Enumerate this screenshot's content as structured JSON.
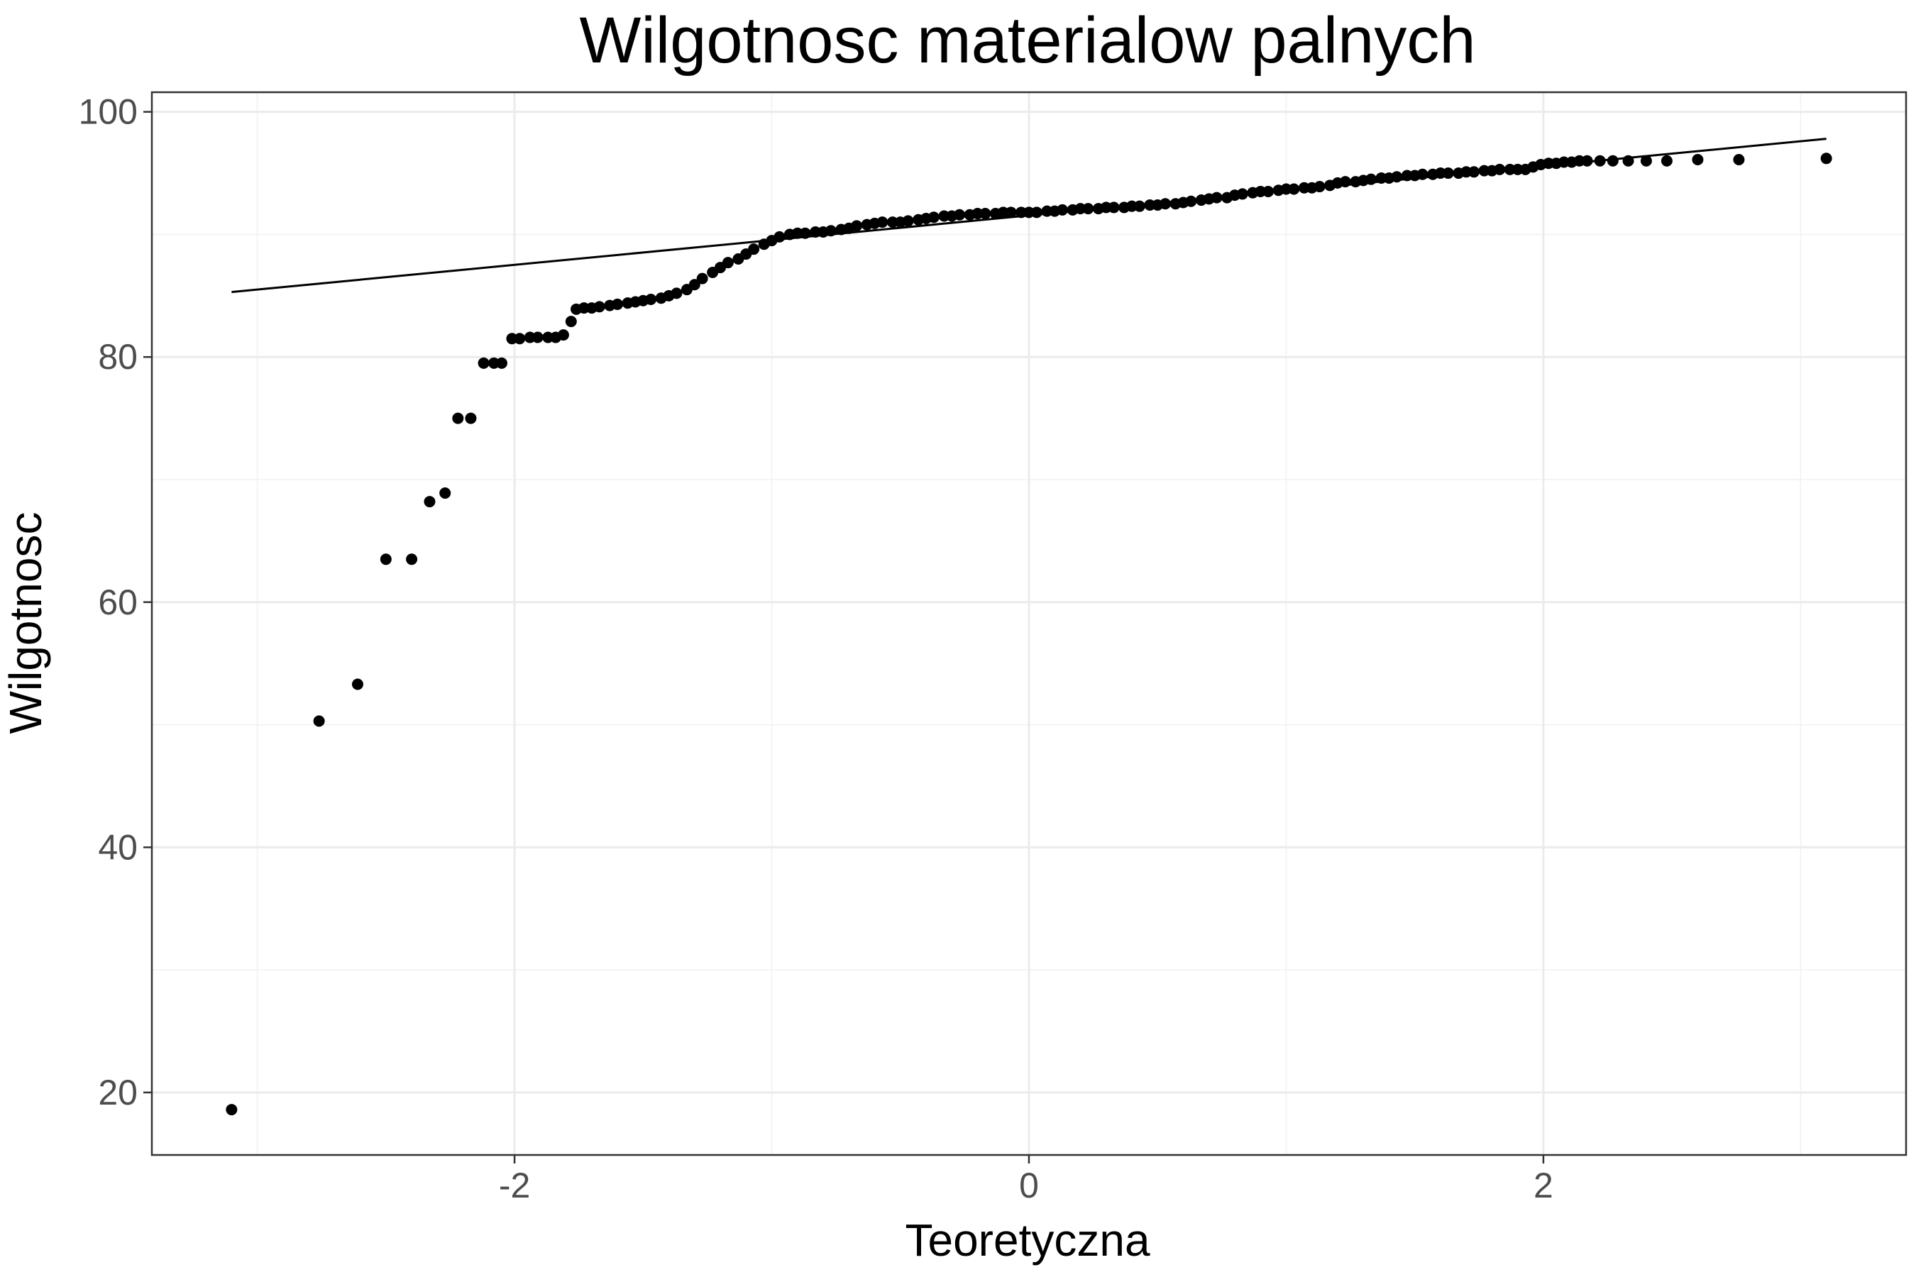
{
  "chart_data": {
    "type": "scatter",
    "title": "Wilgotnosc materialow palnych",
    "xlabel": "Teoretyczna",
    "ylabel": "Wilgotnosc",
    "xlim": [
      -3.41,
      3.41
    ],
    "ylim": [
      14.9,
      101.6
    ],
    "x_ticks": [
      -2,
      0,
      2
    ],
    "x_tick_labels": [
      "-2",
      "0",
      "2"
    ],
    "y_ticks": [
      20,
      40,
      60,
      80,
      100
    ],
    "y_tick_labels": [
      "20",
      "40",
      "60",
      "80",
      "100"
    ],
    "grid": true,
    "legend": "none",
    "point_color": "#000000",
    "line_color": "#000000",
    "reference_line": {
      "x": [
        -3.1,
        3.1
      ],
      "y": [
        85.3,
        97.8
      ]
    },
    "points": {
      "x": [
        -3.1,
        -2.76,
        -2.61,
        -2.5,
        -2.4,
        -2.33,
        -2.27,
        -2.22,
        -2.17,
        -2.12,
        -2.08,
        -2.05,
        -2.01,
        -1.98,
        -1.94,
        -1.91,
        -1.87,
        -1.84,
        -1.81,
        -1.78,
        -1.76,
        -1.73,
        -1.7,
        -1.67,
        -1.63,
        -1.6,
        -1.56,
        -1.53,
        -1.5,
        -1.47,
        -1.43,
        -1.4,
        -1.37,
        -1.33,
        -1.3,
        -1.27,
        -1.23,
        -1.2,
        -1.17,
        -1.13,
        -1.1,
        -1.07,
        -1.03,
        -1.0,
        -0.97,
        -0.93,
        -0.9,
        -0.87,
        -0.83,
        -0.8,
        -0.77,
        -0.73,
        -0.7,
        -0.67,
        -0.63,
        -0.6,
        -0.57,
        -0.53,
        -0.5,
        -0.47,
        -0.43,
        -0.4,
        -0.37,
        -0.33,
        -0.3,
        -0.27,
        -0.23,
        -0.2,
        -0.17,
        -0.13,
        -0.1,
        -0.07,
        -0.03,
        0.0,
        0.03,
        0.07,
        0.1,
        0.13,
        0.17,
        0.2,
        0.23,
        0.27,
        0.3,
        0.33,
        0.37,
        0.4,
        0.43,
        0.47,
        0.5,
        0.53,
        0.57,
        0.6,
        0.63,
        0.67,
        0.7,
        0.73,
        0.77,
        0.8,
        0.83,
        0.87,
        0.9,
        0.93,
        0.97,
        1.0,
        1.03,
        1.07,
        1.1,
        1.13,
        1.17,
        1.2,
        1.23,
        1.27,
        1.3,
        1.33,
        1.37,
        1.4,
        1.43,
        1.47,
        1.5,
        1.53,
        1.57,
        1.6,
        1.63,
        1.67,
        1.7,
        1.73,
        1.77,
        1.8,
        1.83,
        1.87,
        1.9,
        1.93,
        1.96,
        1.99,
        2.02,
        2.05,
        2.08,
        2.11,
        2.14,
        2.17,
        2.22,
        2.27,
        2.33,
        2.4,
        2.48,
        2.6,
        2.76,
        3.1
      ],
      "y": [
        18.6,
        50.3,
        53.3,
        63.5,
        63.5,
        68.2,
        68.9,
        75.0,
        75.0,
        79.5,
        79.5,
        79.5,
        81.5,
        81.5,
        81.6,
        81.6,
        81.6,
        81.6,
        81.8,
        82.9,
        83.9,
        84.0,
        84.0,
        84.1,
        84.2,
        84.3,
        84.4,
        84.5,
        84.6,
        84.7,
        84.8,
        85.0,
        85.2,
        85.5,
        85.9,
        86.4,
        86.9,
        87.3,
        87.7,
        88.0,
        88.4,
        88.8,
        89.2,
        89.5,
        89.8,
        90.0,
        90.1,
        90.1,
        90.2,
        90.2,
        90.3,
        90.4,
        90.5,
        90.7,
        90.8,
        90.9,
        91.0,
        91.0,
        91.0,
        91.1,
        91.2,
        91.3,
        91.4,
        91.5,
        91.5,
        91.6,
        91.6,
        91.7,
        91.7,
        91.7,
        91.8,
        91.8,
        91.8,
        91.8,
        91.8,
        91.9,
        91.9,
        92.0,
        92.0,
        92.1,
        92.1,
        92.1,
        92.2,
        92.2,
        92.2,
        92.3,
        92.3,
        92.4,
        92.4,
        92.5,
        92.5,
        92.6,
        92.7,
        92.8,
        92.9,
        93.0,
        93.0,
        93.2,
        93.3,
        93.4,
        93.5,
        93.5,
        93.6,
        93.7,
        93.7,
        93.8,
        93.8,
        93.9,
        94.0,
        94.2,
        94.3,
        94.3,
        94.4,
        94.5,
        94.6,
        94.6,
        94.7,
        94.8,
        94.8,
        94.9,
        94.9,
        95.0,
        95.0,
        95.0,
        95.1,
        95.1,
        95.2,
        95.2,
        95.3,
        95.3,
        95.3,
        95.3,
        95.5,
        95.7,
        95.8,
        95.8,
        95.9,
        95.9,
        96.0,
        96.0,
        96.0,
        96.0,
        96.0,
        96.0,
        96.0,
        96.1,
        96.1,
        96.2
      ]
    }
  }
}
